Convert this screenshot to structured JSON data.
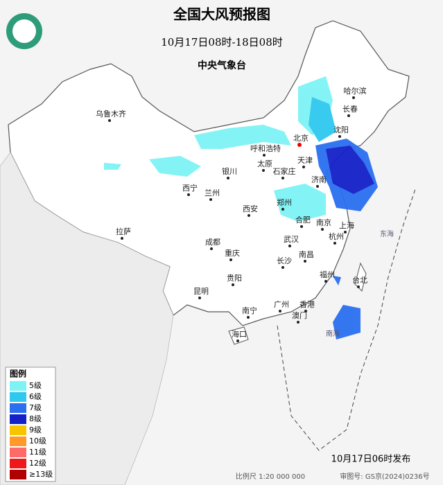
{
  "header": {
    "title": "全国大风预报图",
    "time_range": "10月17日08时-18日08时",
    "agency": "中央气象台"
  },
  "legend": {
    "title": "图例",
    "items": [
      {
        "label": "5级",
        "color": "#7ef3f5"
      },
      {
        "label": "6级",
        "color": "#2fc9ef"
      },
      {
        "label": "7级",
        "color": "#2a6ff0"
      },
      {
        "label": "8级",
        "color": "#1420c8"
      },
      {
        "label": "9级",
        "color": "#f7c400"
      },
      {
        "label": "10级",
        "color": "#ff9a2a"
      },
      {
        "label": "11级",
        "color": "#ff6a6a"
      },
      {
        "label": "12级",
        "color": "#ee1a1a"
      },
      {
        "label": "≥13级",
        "color": "#b00000"
      }
    ]
  },
  "cities": [
    "哈尔滨",
    "长春",
    "沈阳",
    "乌鲁木齐",
    "呼和浩特",
    "北京",
    "天津",
    "太原",
    "石家庄",
    "银川",
    "济南",
    "西宁",
    "兰州",
    "郑州",
    "西安",
    "合肥",
    "南京",
    "上海",
    "成都",
    "武汉",
    "杭州",
    "重庆",
    "长沙",
    "南昌",
    "拉萨",
    "福州",
    "台北",
    "贵阳",
    "昆明",
    "广州",
    "香港",
    "澳门",
    "南宁",
    "海口"
  ],
  "seas": [
    "东海",
    "南海"
  ],
  "footer": {
    "issued": "10月17日06时发布",
    "scale": "比例尺 1:20 000 000",
    "approval": "审图号: GS京(2024)0236号"
  }
}
